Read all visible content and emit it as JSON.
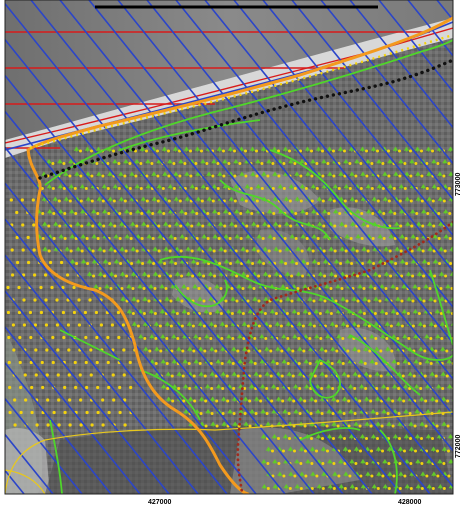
{
  "map": {
    "colors": {
      "coast_line": "#d81b1b",
      "hatch_line": "#2b45c9",
      "boundary_orange": "#f39a1e",
      "habitat_green": "#4fd62a",
      "point_yellow": "#f4d30c",
      "forest_symbol": "#62c92a",
      "black_dots": "#111111",
      "red_dots": "#a12a1c",
      "thin_yellow": "#e8c81d",
      "scalebar": "#000000"
    },
    "coordinate_labels": {
      "x_left": "427000",
      "x_right": "428000",
      "y_top": "773000",
      "y_bottom": "772000"
    }
  }
}
